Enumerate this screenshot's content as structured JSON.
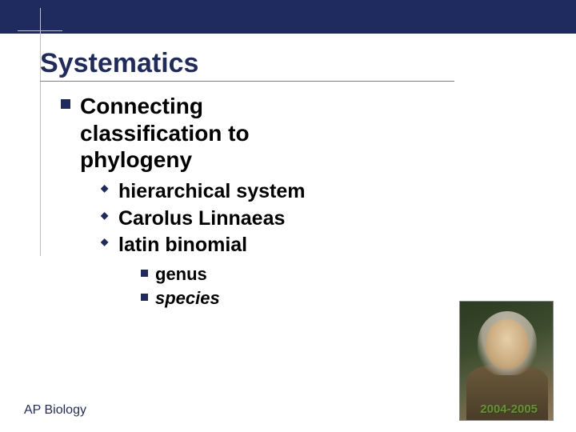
{
  "colors": {
    "bar": "#1f2b5f",
    "title": "#1f2b5f",
    "bullet": "#1f2b5f",
    "text": "#000000",
    "footer": "#1f2b5f",
    "year": "#6a8f3a",
    "rule": "#808080",
    "guide": "#c0c0c0"
  },
  "typography": {
    "title_fontsize": 34,
    "l1_fontsize": 28,
    "l2_fontsize": 25,
    "l3_fontsize": 22,
    "footer_fontsize": 16,
    "family": "Arial"
  },
  "title": "Systematics",
  "bullets": {
    "l1": "Connecting classification to phylogeny",
    "l2": [
      "hierarchical system",
      "Carolus Linnaeas",
      "latin binomial"
    ],
    "l3": [
      {
        "text": "genus",
        "italic": false
      },
      {
        "text": "species",
        "italic": true
      }
    ]
  },
  "footer": {
    "left": "AP Biology",
    "right": "2004-2005"
  },
  "image": {
    "name": "portrait-carolus-linnaeus",
    "width": 118,
    "height": 150
  }
}
